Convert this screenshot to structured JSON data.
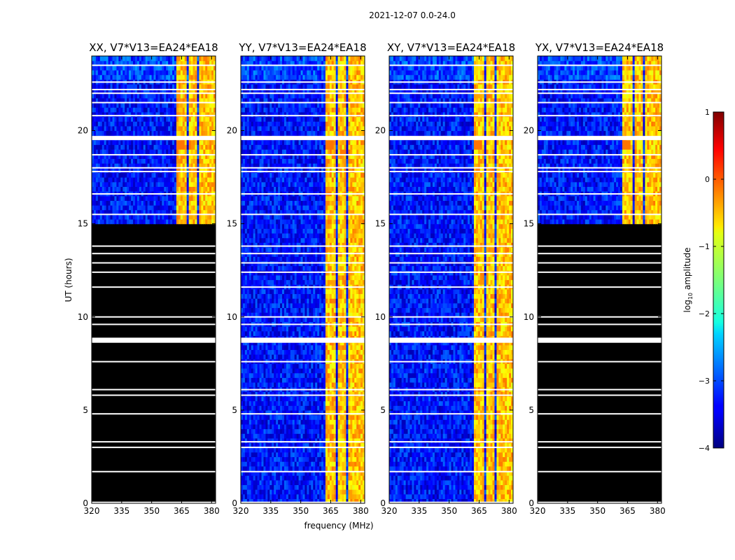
{
  "chart_data": {
    "type": "heatmap",
    "suptitle": "2021-12-07 0.0-24.0",
    "xlabel": "frequency (MHz)",
    "ylabel": "UT (hours)",
    "xlim": [
      320,
      382
    ],
    "ylim": [
      0,
      24
    ],
    "xticks": [
      "320",
      "335",
      "350",
      "365",
      "380"
    ],
    "xtick_values": [
      320,
      335,
      350,
      365,
      380
    ],
    "yticks": [
      "0",
      "5",
      "10",
      "15",
      "20"
    ],
    "ytick_values": [
      0,
      5,
      10,
      15,
      20
    ],
    "colorbar": {
      "label": "log",
      "label_sub": "10",
      "label_rest": " amplitude",
      "range": [
        -4,
        1
      ],
      "ticks": [
        "1",
        "0",
        "−1",
        "−2",
        "−3",
        "−4"
      ],
      "tick_values": [
        1,
        0,
        -1,
        -2,
        -3,
        -4
      ],
      "colormap": "jet"
    },
    "panels": [
      {
        "title": "XX, V7*V13=EA24*EA18",
        "data_start_ut": 15.0
      },
      {
        "title": "YY, V7*V13=EA24*EA18",
        "data_start_ut": 0.0
      },
      {
        "title": "XY, V7*V13=EA24*EA18",
        "data_start_ut": 0.0
      },
      {
        "title": "YX, V7*V13=EA24*EA18",
        "data_start_ut": 15.0
      }
    ],
    "rfi_channels_mhz": [
      365,
      371,
      376,
      380
    ],
    "rfi_log_amplitude": -0.6,
    "background_log_amplitude": -3.3,
    "flagged_ut_hours": [
      8.65,
      8.85,
      19.6,
      9.6,
      10.0,
      11.6,
      12.4,
      12.9,
      13.4,
      13.8,
      15.5,
      16.6,
      17.8,
      18.0,
      18.7,
      20.8,
      21.5,
      22.0,
      22.2,
      22.6,
      23.5,
      7.6,
      6.1,
      5.8,
      4.8,
      3.3,
      3.0,
      1.7,
      0.05
    ]
  }
}
